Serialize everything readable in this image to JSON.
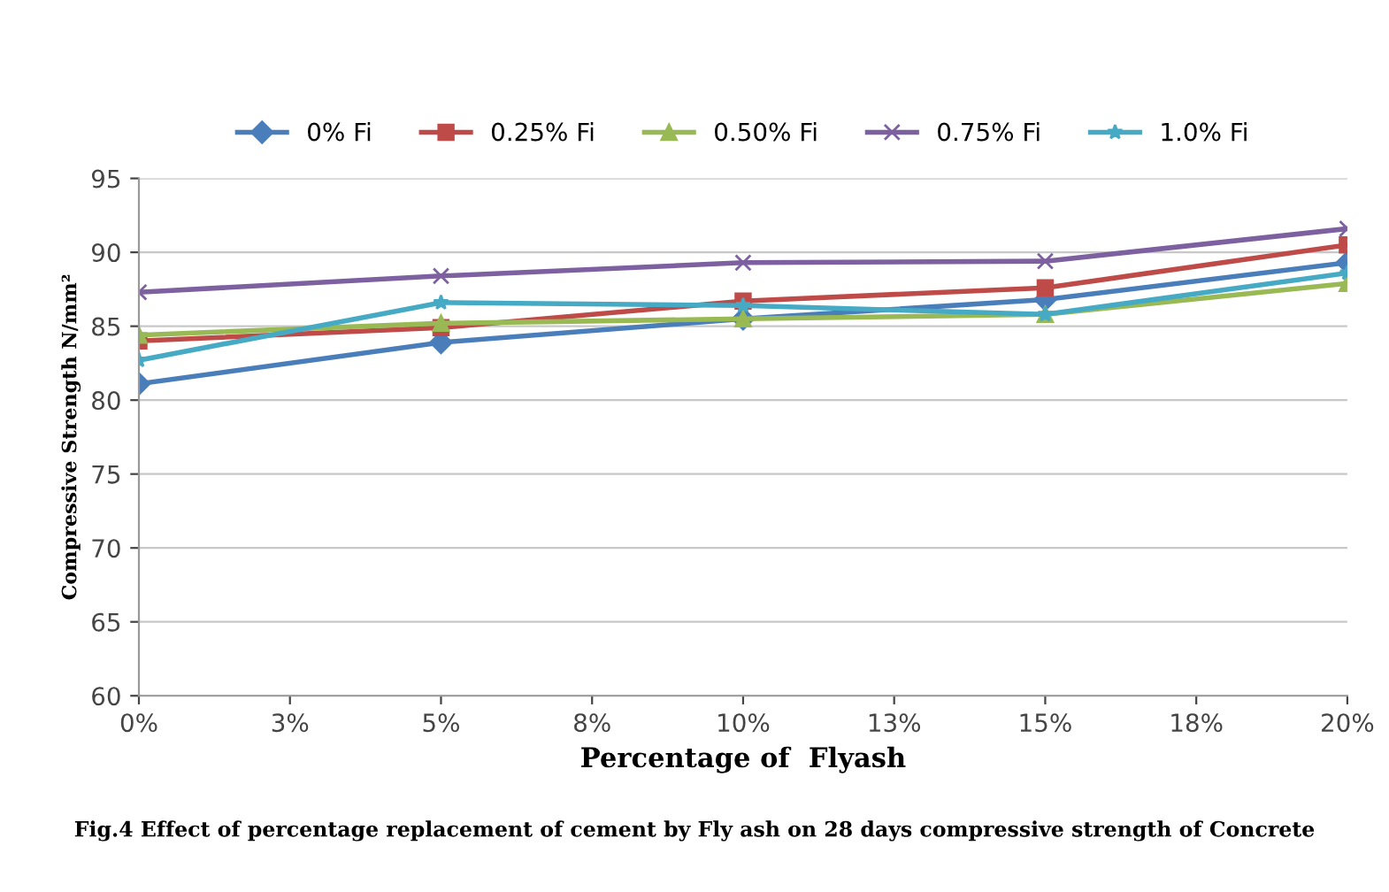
{
  "chart_data": {
    "type": "line",
    "xlabel": "Percentage of  Flyash",
    "ylabel": "Compressive Strength N/mm²",
    "annotations": [
      "Fig.4 Effect of percentage replacement of cement by Fly ash on 28 days compressive strength of Concrete"
    ],
    "x": [
      0,
      5,
      10,
      15,
      20
    ],
    "series": [
      {
        "name": "0% Fi",
        "color": "#4a7ebb",
        "marker": "diamond",
        "values": [
          81.1,
          83.9,
          85.5,
          86.8,
          89.3
        ]
      },
      {
        "name": "0.25% Fi",
        "color": "#be4b48",
        "marker": "square",
        "values": [
          84.0,
          84.9,
          86.7,
          87.6,
          90.5
        ]
      },
      {
        "name": "0.50% Fi",
        "color": "#98b954",
        "marker": "triangle",
        "values": [
          84.4,
          85.2,
          85.5,
          85.8,
          87.9
        ]
      },
      {
        "name": "0.75% Fi",
        "color": "#7d60a0",
        "marker": "cross",
        "values": [
          87.3,
          88.4,
          89.3,
          89.4,
          91.6
        ]
      },
      {
        "name": "1.0% Fi",
        "color": "#46aac5",
        "marker": "star",
        "values": [
          82.7,
          86.6,
          86.4,
          85.8,
          88.6
        ]
      }
    ],
    "xlim": [
      0,
      20
    ],
    "xticks": [
      {
        "value": 0,
        "label": "0%"
      },
      {
        "value": 2.5,
        "label": "3%"
      },
      {
        "value": 5,
        "label": "5%"
      },
      {
        "value": 7.5,
        "label": "8%"
      },
      {
        "value": 10,
        "label": "10%"
      },
      {
        "value": 12.5,
        "label": "13%"
      },
      {
        "value": 15,
        "label": "15%"
      },
      {
        "value": 17.5,
        "label": "18%"
      },
      {
        "value": 20,
        "label": "20%"
      }
    ],
    "ylim": [
      60,
      95
    ],
    "yticks": [
      60,
      65,
      70,
      75,
      80,
      85,
      90,
      95
    ],
    "grid": "y",
    "legend": "top",
    "line_style": "solid"
  }
}
